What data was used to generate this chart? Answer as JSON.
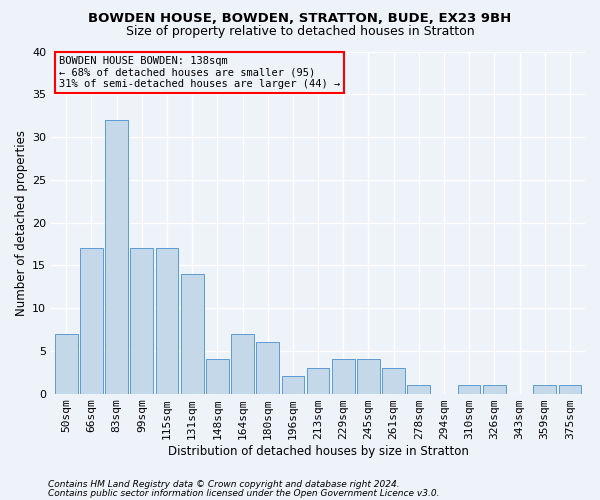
{
  "title1": "BOWDEN HOUSE, BOWDEN, STRATTON, BUDE, EX23 9BH",
  "title2": "Size of property relative to detached houses in Stratton",
  "xlabel": "Distribution of detached houses by size in Stratton",
  "ylabel": "Number of detached properties",
  "footnote1": "Contains HM Land Registry data © Crown copyright and database right 2024.",
  "footnote2": "Contains public sector information licensed under the Open Government Licence v3.0.",
  "annotation_line1": "BOWDEN HOUSE BOWDEN: 138sqm",
  "annotation_line2": "← 68% of detached houses are smaller (95)",
  "annotation_line3": "31% of semi-detached houses are larger (44) →",
  "bar_color": "#c5d8ea",
  "bar_edge_color": "#5b9bd5",
  "categories": [
    "50sqm",
    "66sqm",
    "83sqm",
    "99sqm",
    "115sqm",
    "131sqm",
    "148sqm",
    "164sqm",
    "180sqm",
    "196sqm",
    "213sqm",
    "229sqm",
    "245sqm",
    "261sqm",
    "278sqm",
    "294sqm",
    "310sqm",
    "326sqm",
    "343sqm",
    "359sqm",
    "375sqm"
  ],
  "values": [
    7,
    17,
    32,
    17,
    17,
    14,
    4,
    7,
    6,
    2,
    3,
    4,
    4,
    3,
    1,
    0,
    1,
    1,
    0,
    1,
    1
  ],
  "ylim": [
    0,
    40
  ],
  "yticks": [
    0,
    5,
    10,
    15,
    20,
    25,
    30,
    35,
    40
  ],
  "background_color": "#eef2f9",
  "grid_color": "#ffffff",
  "title_fontsize": 9.5,
  "subtitle_fontsize": 9,
  "ylabel_fontsize": 8.5,
  "xlabel_fontsize": 8.5,
  "tick_fontsize": 8,
  "annotation_fontsize": 7.5,
  "footnote_fontsize": 6.5
}
